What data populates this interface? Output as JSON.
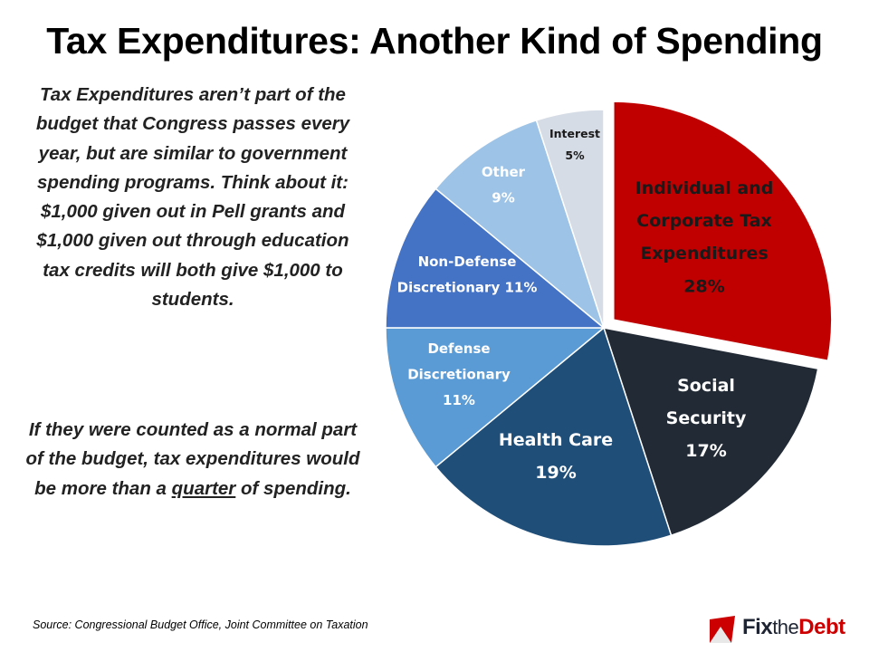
{
  "title": "Tax Expenditures: Another Kind of Spending",
  "text": {
    "para1": "Tax Expenditures aren’t part of the budget that Congress passes every year, but are similar to government spending programs. Think about it: $1,000 given out in Pell grants and $1,000 given out through education tax credits will both give $1,000 to students.",
    "para2_before": "If they were counted as a normal part of the budget, tax expenditures would be more than a",
    "para2_underlined": "quarter",
    "para2_after": "of spending."
  },
  "source": "Source: Congressional Budget Office, Joint Committee on Taxation",
  "logo": {
    "fix": "Fix",
    "the": "the",
    "debt": "Debt"
  },
  "chart_data": {
    "type": "pie",
    "unit": "%",
    "slices": [
      {
        "label_lines": [
          "Individual and",
          "Corporate Tax",
          "Expenditures"
        ],
        "value": 28,
        "value_label": "28%",
        "color": "#c00000",
        "label_color": "#1a1a1a",
        "exploded": true
      },
      {
        "label_lines": [
          "Social",
          "Security"
        ],
        "value": 17,
        "value_label": "17%",
        "color": "#222a35",
        "label_color": "#ffffff"
      },
      {
        "label_lines": [
          "Health Care"
        ],
        "value": 19,
        "value_label": "19%",
        "color": "#1f4e79",
        "label_color": "#ffffff"
      },
      {
        "label_lines": [
          "Defense",
          "Discretionary"
        ],
        "value": 11,
        "value_label": "11%",
        "color": "#5b9bd5",
        "label_color": "#ffffff"
      },
      {
        "label_lines": [
          "Non-Defense",
          "Discretionary  11%"
        ],
        "value": 11,
        "value_label": "",
        "color": "#4472c4",
        "label_color": "#ffffff"
      },
      {
        "label_lines": [
          "Other"
        ],
        "value": 9,
        "value_label": "9%",
        "color": "#9dc3e6",
        "label_color": "#ffffff"
      },
      {
        "label_lines": [
          "Interest"
        ],
        "value": 5,
        "value_label": "5%",
        "color": "#d6dce5",
        "label_color": "#1a1a1a"
      }
    ]
  }
}
